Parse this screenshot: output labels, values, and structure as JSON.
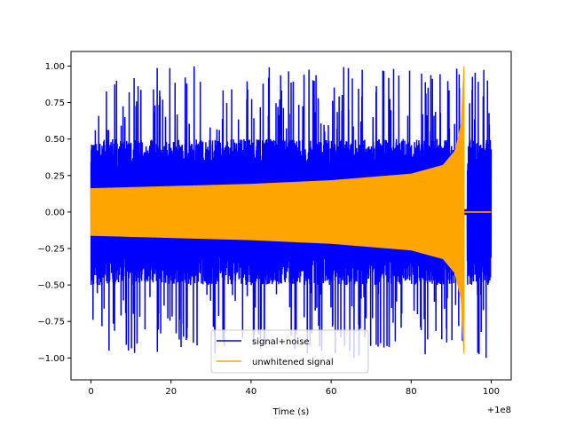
{
  "chart_data": {
    "type": "line",
    "xlabel": "Time (s)",
    "ylabel": "",
    "x_offset_label": "+1e8",
    "xlim": [
      -5,
      105
    ],
    "ylim": [
      -1.15,
      1.1
    ],
    "x_ticks": [
      0,
      20,
      40,
      60,
      80,
      100
    ],
    "x_tick_labels": [
      "0",
      "20",
      "40",
      "60",
      "80",
      "100"
    ],
    "y_ticks": [
      1.0,
      0.75,
      0.5,
      0.25,
      0.0,
      -0.25,
      -0.5,
      -0.75,
      -1.0
    ],
    "y_tick_labels": [
      "1.00",
      "0.75",
      "0.50",
      "0.25",
      "0.00",
      "−0.25",
      "−0.50",
      "−0.75",
      "−1.00"
    ],
    "legend_position": "lower center",
    "series": [
      {
        "name": "signal+noise",
        "color": "#0000ff",
        "x_range": [
          0,
          100
        ],
        "noise_amplitude_typical": 0.5,
        "noise_peak": 1.0,
        "quiet_interval": [
          93,
          94
        ]
      },
      {
        "name": "unwhitened signal",
        "color": "#ffa500",
        "x_range": [
          0,
          100
        ],
        "envelope": [
          {
            "x": 0,
            "y": 0.16
          },
          {
            "x": 20,
            "y": 0.175
          },
          {
            "x": 40,
            "y": 0.19
          },
          {
            "x": 60,
            "y": 0.215
          },
          {
            "x": 80,
            "y": 0.26
          },
          {
            "x": 88,
            "y": 0.32
          },
          {
            "x": 91,
            "y": 0.42
          },
          {
            "x": 92.5,
            "y": 0.6
          },
          {
            "x": 93.2,
            "y": 1.0
          }
        ],
        "merger_time": 93.2,
        "min_value": -0.97,
        "post_merger_value": 0.0
      }
    ]
  }
}
